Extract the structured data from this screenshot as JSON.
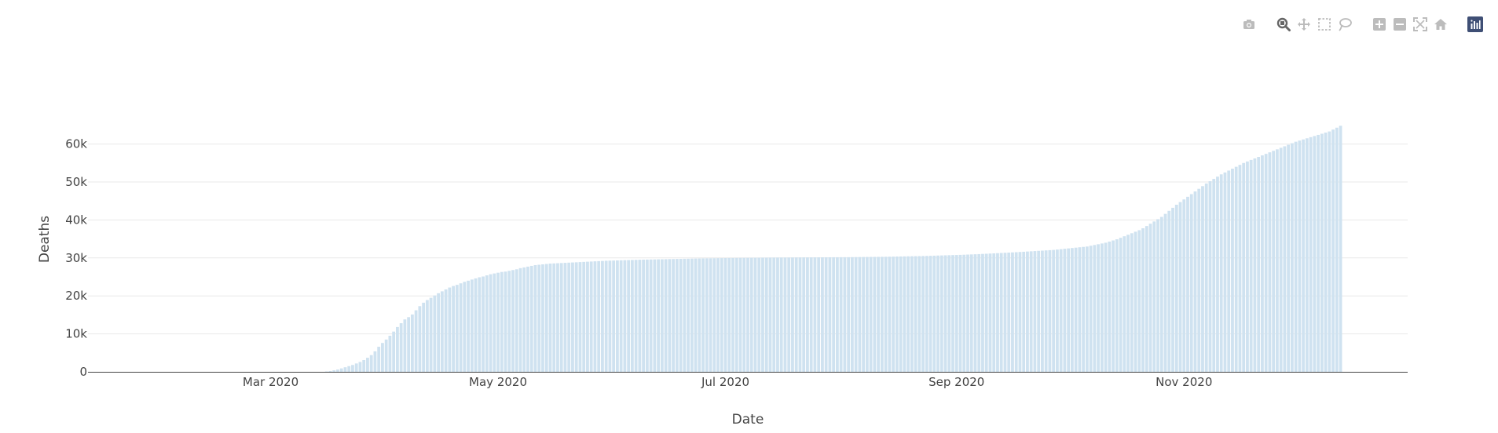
{
  "modebar": {
    "buttons": [
      {
        "name": "camera-icon",
        "group": 0
      },
      {
        "name": "zoom-icon",
        "group": 1,
        "active": true
      },
      {
        "name": "pan-icon",
        "group": 1
      },
      {
        "name": "box-select-icon",
        "group": 1
      },
      {
        "name": "lasso-select-icon",
        "group": 1
      },
      {
        "name": "zoom-in-icon",
        "group": 2
      },
      {
        "name": "zoom-out-icon",
        "group": 2
      },
      {
        "name": "autoscale-icon",
        "group": 2
      },
      {
        "name": "reset-axes-icon",
        "group": 2
      },
      {
        "name": "plotly-logo-icon",
        "group": 3
      }
    ]
  },
  "chart_data": {
    "type": "bar",
    "xlabel": "Date",
    "ylabel": "Deaths",
    "bar_color": "#cfe2f0",
    "axis_line_color": "#444444",
    "grid": true,
    "xlim": [
      "2020-01-12",
      "2020-12-31"
    ],
    "ylim": [
      0,
      69000
    ],
    "x_ticks": [
      {
        "date": "2020-03-01",
        "label": "Mar 2020"
      },
      {
        "date": "2020-05-01",
        "label": "May 2020"
      },
      {
        "date": "2020-07-01",
        "label": "Jul 2020"
      },
      {
        "date": "2020-09-01",
        "label": "Sep 2020"
      },
      {
        "date": "2020-11-01",
        "label": "Nov 2020"
      }
    ],
    "y_ticks": [
      {
        "value": 0,
        "label": "0"
      },
      {
        "value": 10000,
        "label": "10k"
      },
      {
        "value": 20000,
        "label": "20k"
      },
      {
        "value": 30000,
        "label": "30k"
      },
      {
        "value": 40000,
        "label": "40k"
      },
      {
        "value": 50000,
        "label": "50k"
      },
      {
        "value": 60000,
        "label": "60k"
      }
    ],
    "series": [
      {
        "x_start": "2020-01-13",
        "x_end": "2020-12-31",
        "x_step_days": 1,
        "values": [
          0,
          0,
          0,
          0,
          0,
          0,
          0,
          0,
          0,
          0,
          0,
          0,
          0,
          0,
          0,
          0,
          0,
          0,
          0,
          0,
          0,
          0,
          0,
          0,
          0,
          0,
          0,
          0,
          0,
          0,
          0,
          0,
          0,
          0,
          0,
          0,
          0,
          0,
          0,
          0,
          0,
          0,
          0,
          0,
          0,
          0,
          0,
          0,
          0,
          0,
          0,
          0,
          0,
          0,
          0,
          0,
          0,
          0,
          0,
          0,
          0,
          0,
          0,
          100,
          200,
          400,
          600,
          900,
          1200,
          1500,
          1800,
          2200,
          2600,
          3100,
          3700,
          4400,
          5400,
          6600,
          7600,
          8500,
          9500,
          10600,
          11800,
          12800,
          13800,
          14400,
          15100,
          16200,
          17300,
          18200,
          18900,
          19500,
          20100,
          20700,
          21200,
          21700,
          22200,
          22600,
          22900,
          23300,
          23700,
          24000,
          24300,
          24600,
          24900,
          25100,
          25400,
          25700,
          25900,
          26100,
          26300,
          26400,
          26600,
          26800,
          27000,
          27300,
          27500,
          27700,
          27900,
          28100,
          28200,
          28300,
          28400,
          28500,
          28550,
          28600,
          28650,
          28700,
          28750,
          28800,
          28850,
          28900,
          28950,
          29000,
          29050,
          29100,
          29150,
          29200,
          29250,
          29280,
          29310,
          29340,
          29370,
          29400,
          29430,
          29460,
          29490,
          29520,
          29550,
          29570,
          29590,
          29610,
          29630,
          29650,
          29670,
          29690,
          29710,
          29730,
          29750,
          29770,
          29790,
          29810,
          29830,
          29850,
          29865,
          29880,
          29895,
          29910,
          29925,
          29940,
          29955,
          29970,
          29985,
          30000,
          30010,
          30020,
          30030,
          30040,
          30050,
          30060,
          30070,
          30080,
          30090,
          30100,
          30105,
          30110,
          30115,
          30120,
          30125,
          30130,
          30135,
          30140,
          30145,
          30150,
          30155,
          30160,
          30165,
          30170,
          30175,
          30180,
          30185,
          30190,
          30195,
          30200,
          30210,
          30220,
          30230,
          30240,
          30250,
          30260,
          30270,
          30280,
          30290,
          30300,
          30320,
          30340,
          30360,
          30380,
          30400,
          30420,
          30440,
          30460,
          30480,
          30500,
          30530,
          30560,
          30590,
          30620,
          30650,
          30680,
          30710,
          30740,
          30770,
          30800,
          30840,
          30880,
          30920,
          30960,
          31000,
          31050,
          31100,
          31150,
          31200,
          31250,
          31300,
          31350,
          31400,
          31450,
          31500,
          31560,
          31620,
          31680,
          31740,
          31800,
          31860,
          31920,
          31980,
          32040,
          32100,
          32200,
          32300,
          32400,
          32500,
          32600,
          32700,
          32800,
          32900,
          33000,
          33200,
          33400,
          33600,
          33800,
          34000,
          34300,
          34600,
          34900,
          35300,
          35700,
          36100,
          36500,
          36900,
          37300,
          37800,
          38400,
          39000,
          39600,
          40200,
          40800,
          41600,
          42400,
          43200,
          44000,
          44700,
          45400,
          46100,
          46800,
          47500,
          48200,
          48900,
          49600,
          50200,
          50800,
          51400,
          52000,
          52500,
          53000,
          53500,
          54000,
          54500,
          55000,
          55400,
          55800,
          56200,
          56600,
          57000,
          57400,
          57800,
          58200,
          58600,
          59000,
          59400,
          59800,
          60200,
          60600,
          60900,
          61200,
          61500,
          61800,
          62100,
          62400,
          62700,
          63000,
          63300,
          63800,
          64300,
          64800
        ]
      }
    ]
  }
}
